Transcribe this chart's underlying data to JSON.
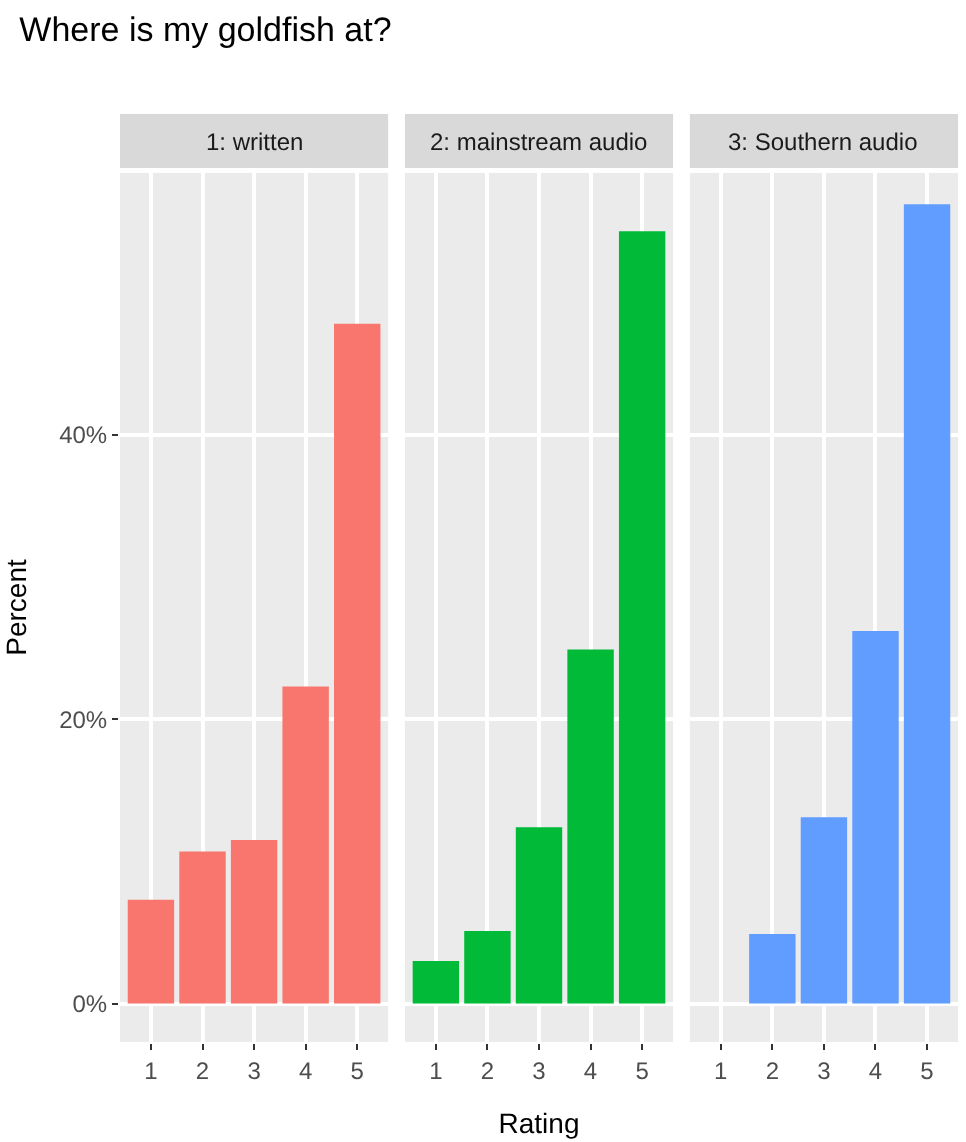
{
  "chart_data": [
    {
      "type": "bar",
      "title": "Where is my goldfish at?",
      "subtitle": "1: written",
      "ylabel": "Percent",
      "categories": [
        "1",
        "2",
        "3",
        "4",
        "5"
      ],
      "values": [
        7.3,
        10.7,
        11.5,
        22.3,
        47.8
      ],
      "color": "#f8766d",
      "ylim": [
        -2.7,
        58.4
      ],
      "yticks": [
        {
          "value": 0,
          "label": "0%"
        },
        {
          "value": 20,
          "label": "20%"
        },
        {
          "value": 40,
          "label": "40%"
        }
      ],
      "grid": true
    },
    {
      "type": "bar",
      "subtitle": "2: mainstream audio",
      "xlabel": "Rating",
      "categories": [
        "1",
        "2",
        "3",
        "4",
        "5"
      ],
      "values": [
        3.0,
        5.1,
        12.4,
        24.9,
        54.3
      ],
      "color": "#00ba38",
      "ylim": [
        -2.7,
        58.4
      ],
      "yticks": [
        {
          "value": 0,
          "label": null
        },
        {
          "value": 20,
          "label": null
        },
        {
          "value": 40,
          "label": null
        }
      ],
      "grid": true,
      "tick_labels": "x"
    },
    {
      "type": "bar",
      "subtitle": "3: Southern audio",
      "categories": [
        "1",
        "2",
        "3",
        "4",
        "5"
      ],
      "values": [
        0,
        4.9,
        13.1,
        26.2,
        56.2
      ],
      "color": "#619cff",
      "ylim": [
        -2.7,
        58.4
      ],
      "yticks": [
        {
          "value": 0,
          "label": null
        },
        {
          "value": 20,
          "label": null
        },
        {
          "value": 40,
          "label": null
        }
      ],
      "grid": true,
      "tick_labels": "x"
    }
  ]
}
